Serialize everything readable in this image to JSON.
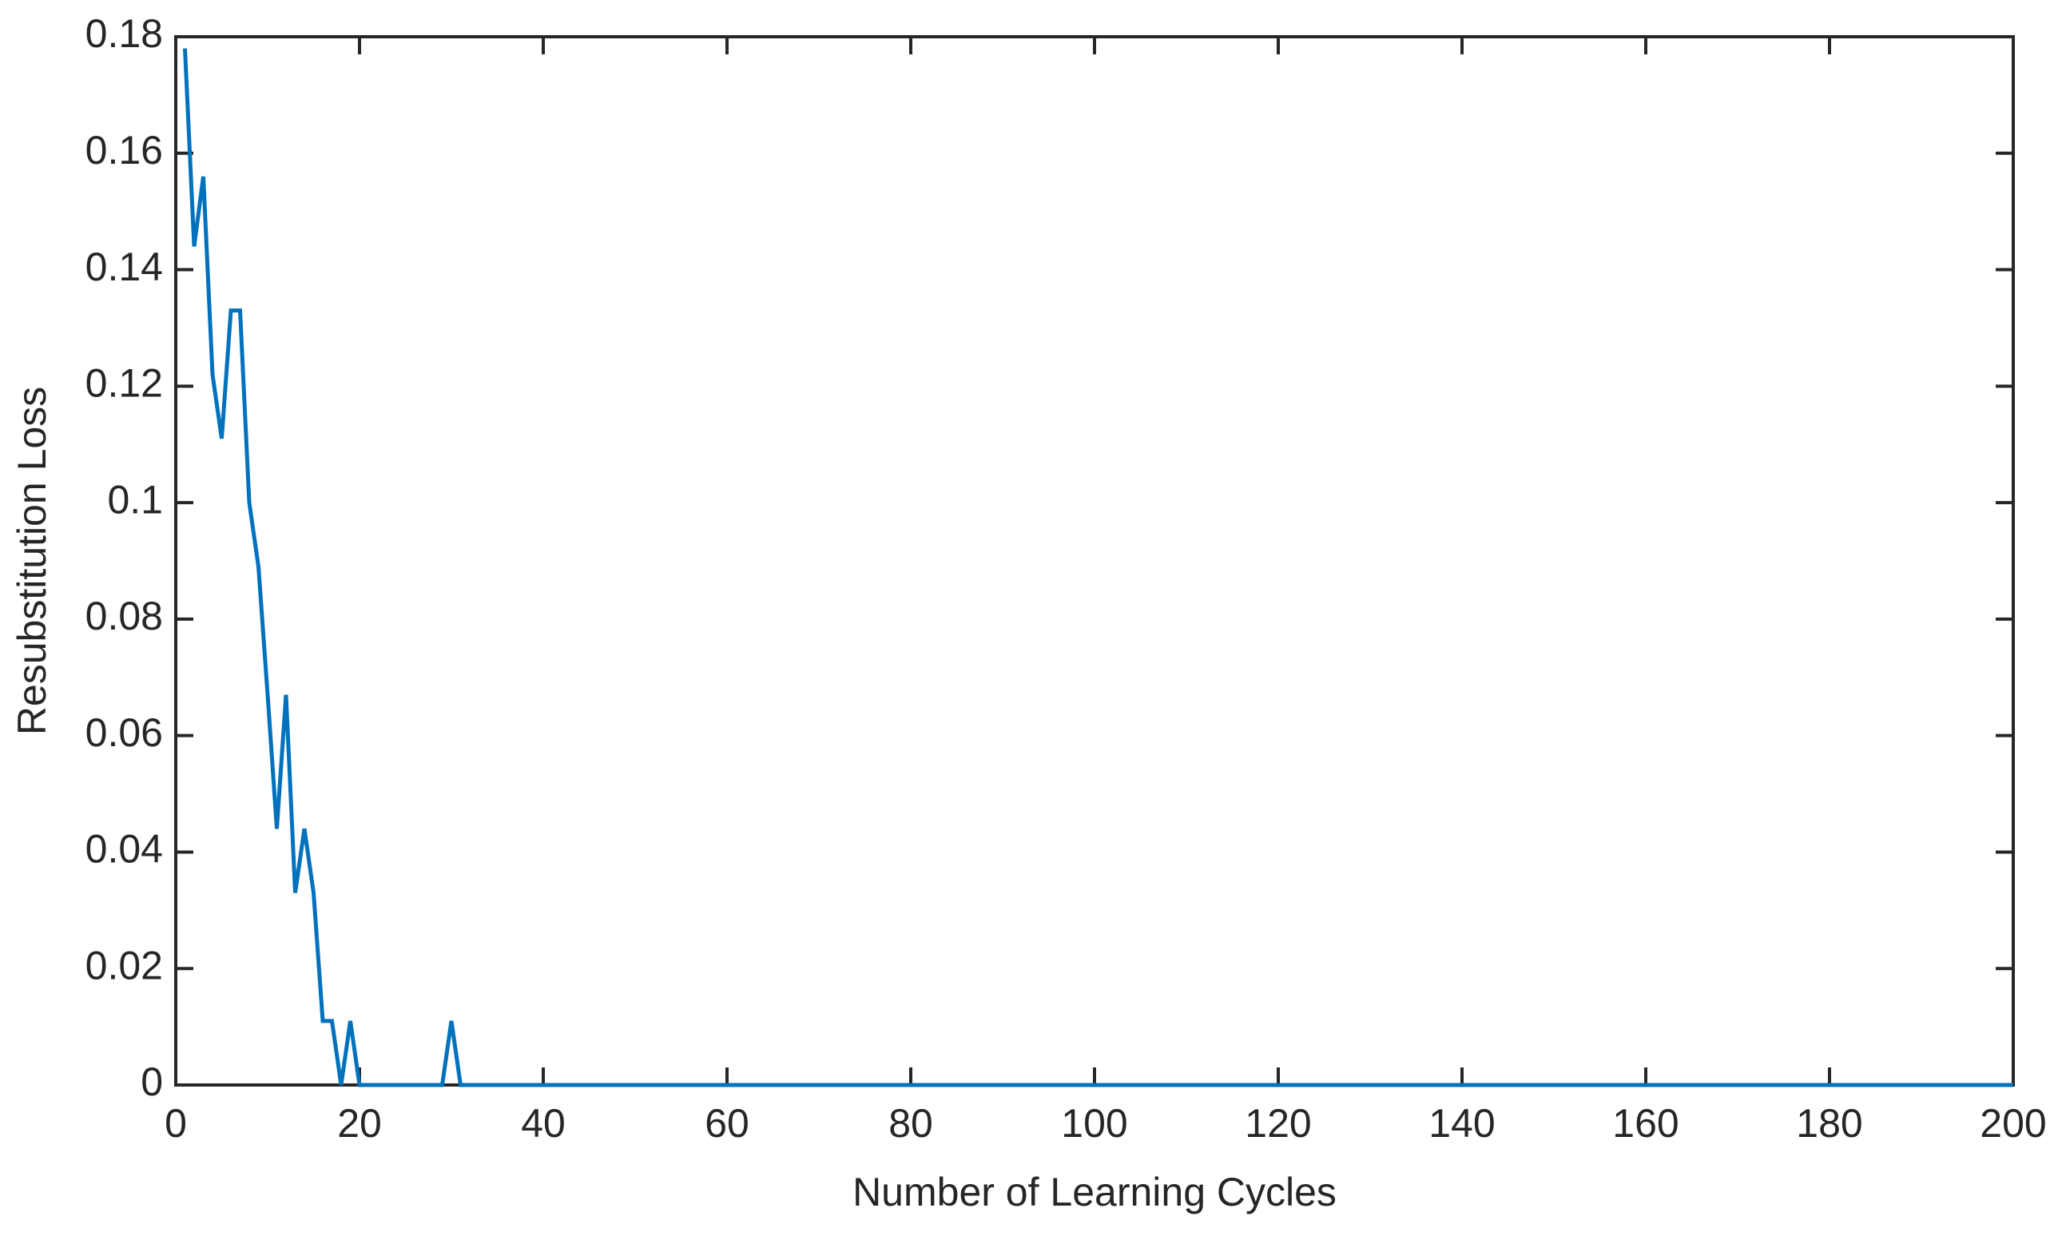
{
  "chart_data": {
    "type": "line",
    "xlabel": "Number of Learning Cycles",
    "ylabel": "Resubstitution Loss",
    "x": [
      1,
      2,
      3,
      4,
      5,
      6,
      7,
      8,
      9,
      10,
      11,
      12,
      13,
      14,
      15,
      16,
      17,
      18,
      19,
      20,
      21,
      22,
      23,
      24,
      25,
      26,
      27,
      28,
      29,
      30,
      31,
      32,
      33,
      34,
      35,
      36,
      37,
      38,
      39,
      40,
      41,
      42,
      43,
      44,
      45,
      46,
      47,
      48,
      49,
      50,
      51,
      52,
      53,
      54,
      55,
      56,
      57,
      58,
      59,
      60,
      61,
      62,
      63,
      64,
      65,
      66,
      67,
      68,
      69,
      70,
      71,
      72,
      73,
      74,
      75,
      76,
      77,
      78,
      79,
      80,
      81,
      82,
      83,
      84,
      85,
      86,
      87,
      88,
      89,
      90,
      91,
      92,
      93,
      94,
      95,
      96,
      97,
      98,
      99,
      100,
      101,
      102,
      103,
      104,
      105,
      106,
      107,
      108,
      109,
      110,
      111,
      112,
      113,
      114,
      115,
      116,
      117,
      118,
      119,
      120,
      121,
      122,
      123,
      124,
      125,
      126,
      127,
      128,
      129,
      130,
      131,
      132,
      133,
      134,
      135,
      136,
      137,
      138,
      139,
      140,
      141,
      142,
      143,
      144,
      145,
      146,
      147,
      148,
      149,
      150,
      151,
      152,
      153,
      154,
      155,
      156,
      157,
      158,
      159,
      160,
      161,
      162,
      163,
      164,
      165,
      166,
      167,
      168,
      169,
      170,
      171,
      172,
      173,
      174,
      175,
      176,
      177,
      178,
      179,
      180,
      181,
      182,
      183,
      184,
      185,
      186,
      187,
      188,
      189,
      190,
      191,
      192,
      193,
      194,
      195,
      196,
      197,
      198,
      199,
      200
    ],
    "values": [
      0.178,
      0.144,
      0.156,
      0.122,
      0.111,
      0.133,
      0.133,
      0.1,
      0.089,
      0.067,
      0.044,
      0.067,
      0.033,
      0.044,
      0.033,
      0.011,
      0.011,
      0,
      0.011,
      0,
      0,
      0,
      0,
      0,
      0,
      0,
      0,
      0,
      0,
      0.011,
      0,
      0,
      0,
      0,
      0,
      0,
      0,
      0,
      0,
      0,
      0,
      0,
      0,
      0,
      0,
      0,
      0,
      0,
      0,
      0,
      0,
      0,
      0,
      0,
      0,
      0,
      0,
      0,
      0,
      0,
      0,
      0,
      0,
      0,
      0,
      0,
      0,
      0,
      0,
      0,
      0,
      0,
      0,
      0,
      0,
      0,
      0,
      0,
      0,
      0,
      0,
      0,
      0,
      0,
      0,
      0,
      0,
      0,
      0,
      0,
      0,
      0,
      0,
      0,
      0,
      0,
      0,
      0,
      0,
      0,
      0,
      0,
      0,
      0,
      0,
      0,
      0,
      0,
      0,
      0,
      0,
      0,
      0,
      0,
      0,
      0,
      0,
      0,
      0,
      0,
      0,
      0,
      0,
      0,
      0,
      0,
      0,
      0,
      0,
      0,
      0,
      0,
      0,
      0,
      0,
      0,
      0,
      0,
      0,
      0,
      0,
      0,
      0,
      0,
      0,
      0,
      0,
      0,
      0,
      0,
      0,
      0,
      0,
      0,
      0,
      0,
      0,
      0,
      0,
      0,
      0,
      0,
      0,
      0,
      0,
      0,
      0,
      0,
      0,
      0,
      0,
      0,
      0,
      0,
      0,
      0,
      0,
      0,
      0,
      0,
      0,
      0,
      0,
      0,
      0,
      0,
      0,
      0,
      0,
      0,
      0,
      0,
      0,
      0,
      0,
      0,
      0,
      0,
      0,
      0
    ],
    "color": "#0072bd",
    "xlim": [
      0,
      200
    ],
    "xticks": [
      0,
      20,
      40,
      60,
      80,
      100,
      120,
      140,
      160,
      180,
      200
    ],
    "ylim": [
      0,
      0.18
    ],
    "yticks": [
      0,
      0.02,
      0.04,
      0.06,
      0.08,
      0.1,
      0.12,
      0.14,
      0.16,
      0.18
    ],
    "grid": false
  }
}
